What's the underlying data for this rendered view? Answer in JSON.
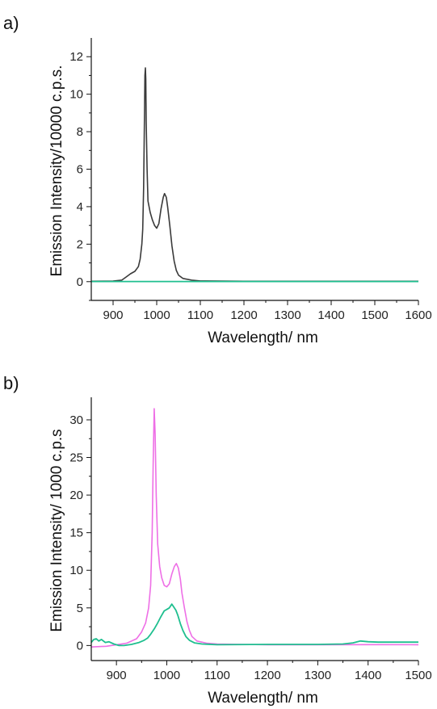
{
  "chart_data": [
    {
      "panel_label": "a)",
      "type": "line",
      "xlabel": "Wavelength/ nm",
      "ylabel": "Emission Intensity/10000 c.p.s.",
      "xlim": [
        850,
        1600
      ],
      "ylim": [
        -1,
        13
      ],
      "xticks": [
        900,
        1000,
        1100,
        1200,
        1300,
        1400,
        1500,
        1600
      ],
      "yticks": [
        0,
        2,
        4,
        6,
        8,
        10,
        12
      ],
      "grid": false,
      "series": [
        {
          "color": "#3a3a3a",
          "points": [
            [
              850,
              0.02
            ],
            [
              900,
              0.03
            ],
            [
              920,
              0.08
            ],
            [
              930,
              0.25
            ],
            [
              940,
              0.42
            ],
            [
              950,
              0.55
            ],
            [
              958,
              0.8
            ],
            [
              962,
              1.2
            ],
            [
              966,
              2.0
            ],
            [
              968,
              2.8
            ],
            [
              970,
              5.0
            ],
            [
              972,
              9.0
            ],
            [
              973,
              11.0
            ],
            [
              974,
              11.4
            ],
            [
              975,
              10.8
            ],
            [
              976,
              8.5
            ],
            [
              978,
              6.0
            ],
            [
              980,
              4.3
            ],
            [
              985,
              3.7
            ],
            [
              990,
              3.3
            ],
            [
              995,
              3.0
            ],
            [
              1000,
              2.85
            ],
            [
              1005,
              3.1
            ],
            [
              1010,
              3.9
            ],
            [
              1015,
              4.5
            ],
            [
              1018,
              4.7
            ],
            [
              1022,
              4.5
            ],
            [
              1025,
              4.0
            ],
            [
              1030,
              3.0
            ],
            [
              1035,
              1.9
            ],
            [
              1040,
              1.1
            ],
            [
              1045,
              0.6
            ],
            [
              1050,
              0.35
            ],
            [
              1060,
              0.17
            ],
            [
              1080,
              0.08
            ],
            [
              1100,
              0.04
            ],
            [
              1200,
              0.02
            ],
            [
              1300,
              0.02
            ],
            [
              1400,
              0.02
            ],
            [
              1500,
              0.02
            ],
            [
              1600,
              0.02
            ]
          ]
        },
        {
          "color": "#1fbf8f",
          "points": [
            [
              850,
              0.01
            ],
            [
              1000,
              0.01
            ],
            [
              1200,
              0.01
            ],
            [
              1400,
              0.01
            ],
            [
              1600,
              0.01
            ]
          ]
        }
      ]
    },
    {
      "panel_label": "b)",
      "type": "line",
      "xlabel": "Wavelength/ nm",
      "ylabel": "Emission Intensity/ 1000 c.p.s",
      "xlim": [
        850,
        1500
      ],
      "ylim": [
        -2,
        33
      ],
      "xticks": [
        900,
        1000,
        1100,
        1200,
        1300,
        1400,
        1500
      ],
      "yticks": [
        0,
        5,
        10,
        15,
        20,
        25,
        30
      ],
      "grid": false,
      "series": [
        {
          "color": "#ee6fe6",
          "points": [
            [
              850,
              -0.2
            ],
            [
              880,
              -0.1
            ],
            [
              900,
              0.1
            ],
            [
              920,
              0.3
            ],
            [
              940,
              0.9
            ],
            [
              950,
              1.8
            ],
            [
              958,
              3.0
            ],
            [
              964,
              5.0
            ],
            [
              968,
              8.0
            ],
            [
              971,
              15.0
            ],
            [
              973,
              24.0
            ],
            [
              975,
              31.5
            ],
            [
              977,
              28.0
            ],
            [
              979,
              20.0
            ],
            [
              982,
              13.5
            ],
            [
              986,
              10.5
            ],
            [
              990,
              9.0
            ],
            [
              995,
              8.0
            ],
            [
              1000,
              7.8
            ],
            [
              1005,
              8.2
            ],
            [
              1010,
              9.5
            ],
            [
              1015,
              10.5
            ],
            [
              1019,
              10.9
            ],
            [
              1023,
              10.3
            ],
            [
              1027,
              8.8
            ],
            [
              1030,
              7.0
            ],
            [
              1035,
              5.0
            ],
            [
              1040,
              3.2
            ],
            [
              1045,
              2.0
            ],
            [
              1050,
              1.2
            ],
            [
              1060,
              0.6
            ],
            [
              1080,
              0.3
            ],
            [
              1100,
              0.2
            ],
            [
              1150,
              0.15
            ],
            [
              1200,
              0.1
            ],
            [
              1300,
              0.1
            ],
            [
              1400,
              0.12
            ],
            [
              1500,
              0.1
            ]
          ]
        },
        {
          "color": "#1fbf8f",
          "points": [
            [
              850,
              0.4
            ],
            [
              855,
              0.8
            ],
            [
              860,
              0.9
            ],
            [
              865,
              0.6
            ],
            [
              870,
              0.8
            ],
            [
              878,
              0.4
            ],
            [
              885,
              0.5
            ],
            [
              895,
              0.2
            ],
            [
              905,
              0.0
            ],
            [
              915,
              0.0
            ],
            [
              930,
              0.15
            ],
            [
              945,
              0.4
            ],
            [
              955,
              0.7
            ],
            [
              962,
              1.0
            ],
            [
              968,
              1.5
            ],
            [
              975,
              2.2
            ],
            [
              982,
              3.0
            ],
            [
              988,
              3.8
            ],
            [
              995,
              4.6
            ],
            [
              1000,
              4.8
            ],
            [
              1005,
              5.0
            ],
            [
              1010,
              5.5
            ],
            [
              1013,
              5.2
            ],
            [
              1018,
              4.7
            ],
            [
              1022,
              4.0
            ],
            [
              1027,
              2.9
            ],
            [
              1032,
              2.0
            ],
            [
              1038,
              1.2
            ],
            [
              1045,
              0.7
            ],
            [
              1055,
              0.35
            ],
            [
              1070,
              0.2
            ],
            [
              1100,
              0.1
            ],
            [
              1200,
              0.15
            ],
            [
              1300,
              0.15
            ],
            [
              1350,
              0.2
            ],
            [
              1370,
              0.35
            ],
            [
              1385,
              0.6
            ],
            [
              1400,
              0.5
            ],
            [
              1420,
              0.45
            ],
            [
              1450,
              0.45
            ],
            [
              1500,
              0.45
            ]
          ]
        }
      ]
    }
  ]
}
